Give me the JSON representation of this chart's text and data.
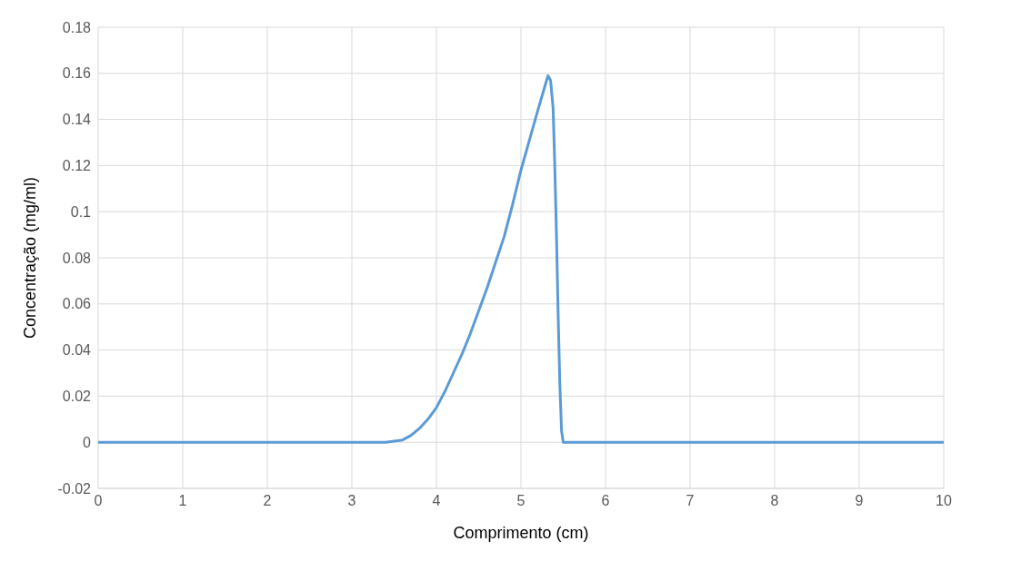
{
  "chart_data": {
    "type": "line",
    "xlabel": "Comprimento (cm)",
    "ylabel": "Concentração (mg/ml)",
    "x": [
      0,
      1,
      2,
      3,
      3.4,
      3.5,
      3.6,
      3.7,
      3.8,
      3.9,
      4,
      4.1,
      4.2,
      4.3,
      4.4,
      4.5,
      4.6,
      4.7,
      4.8,
      4.9,
      5,
      5.1,
      5.2,
      5.28,
      5.32,
      5.35,
      5.38,
      5.4,
      5.42,
      5.44,
      5.46,
      5.48,
      5.5,
      5.6,
      6,
      7,
      8,
      9,
      10
    ],
    "series": [
      {
        "color": "#5b9bd5",
        "values": [
          0,
          0,
          0,
          0,
          0,
          0.0005,
          0.001,
          0.003,
          0.006,
          0.01,
          0.015,
          0.022,
          0.03,
          0.038,
          0.047,
          0.057,
          0.067,
          0.078,
          0.089,
          0.103,
          0.118,
          0.131,
          0.144,
          0.154,
          0.159,
          0.157,
          0.145,
          0.12,
          0.09,
          0.055,
          0.025,
          0.005,
          0,
          0,
          0,
          0,
          0,
          0,
          0
        ]
      }
    ],
    "xlim": [
      0,
      10
    ],
    "xticks": [
      0,
      1,
      2,
      3,
      4,
      5,
      6,
      7,
      8,
      9,
      10
    ],
    "ylim": [
      -0.02,
      0.18
    ],
    "yticks": [
      -0.02,
      0,
      0.02,
      0.04,
      0.06,
      0.08,
      0.1,
      0.12,
      0.14,
      0.16,
      0.18
    ],
    "grid": true,
    "marker": "none",
    "line_style": "solid"
  }
}
